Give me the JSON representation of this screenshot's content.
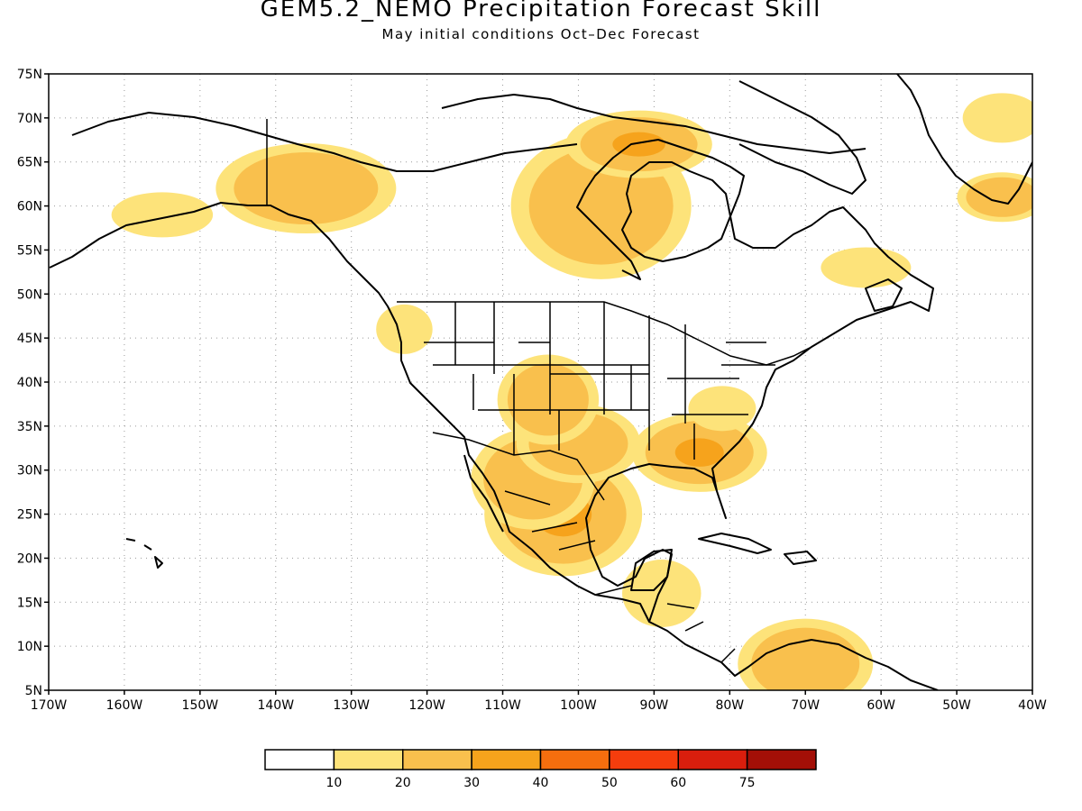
{
  "title": "GEM5.2_NEMO Precipitation Forecast Skill",
  "subtitle": "May initial conditions  Oct–Dec Forecast",
  "map": {
    "lon_range": [
      -170,
      -40
    ],
    "lat_range": [
      5,
      75
    ],
    "lon_labels": [
      "170W",
      "160W",
      "150W",
      "140W",
      "130W",
      "120W",
      "110W",
      "100W",
      "90W",
      "80W",
      "70W",
      "60W",
      "50W",
      "40W"
    ],
    "lat_labels": [
      "5N",
      "10N",
      "15N",
      "20N",
      "25N",
      "30N",
      "35N",
      "40N",
      "45N",
      "50N",
      "55N",
      "60N",
      "65N",
      "70N",
      "75N"
    ],
    "grid": "dotted",
    "skill_regions": [
      {
        "name": "mexico-central",
        "lon": -102,
        "lat": 25,
        "level": 30
      },
      {
        "name": "mexico-west",
        "lon": -106,
        "lat": 29,
        "level": 20
      },
      {
        "name": "texas-west",
        "lon": -100,
        "lat": 33,
        "level": 20
      },
      {
        "name": "colorado-kansas",
        "lon": -104,
        "lat": 38,
        "level": 20
      },
      {
        "name": "southeast-us",
        "lon": -84,
        "lat": 32,
        "level": 30
      },
      {
        "name": "appalachians",
        "lon": -81,
        "lat": 37,
        "level": 10
      },
      {
        "name": "pacific-northwest",
        "lon": -123,
        "lat": 46,
        "level": 10
      },
      {
        "name": "hudson-bay-west",
        "lon": -97,
        "lat": 60,
        "level": 20
      },
      {
        "name": "nunavut-north",
        "lon": -92,
        "lat": 67,
        "level": 30
      },
      {
        "name": "yukon",
        "lon": -136,
        "lat": 62,
        "level": 20
      },
      {
        "name": "alaska-south",
        "lon": -155,
        "lat": 59,
        "level": 10
      },
      {
        "name": "labrador",
        "lon": -62,
        "lat": 53,
        "level": 10
      },
      {
        "name": "greenland-south",
        "lon": -44,
        "lat": 61,
        "level": 20
      },
      {
        "name": "greenland-east",
        "lon": -44,
        "lat": 70,
        "level": 10
      },
      {
        "name": "venezuela",
        "lon": -70,
        "lat": 8,
        "level": 20
      },
      {
        "name": "central-america",
        "lon": -89,
        "lat": 16,
        "level": 10
      }
    ]
  },
  "colorbar": {
    "labels": [
      "10",
      "20",
      "30",
      "40",
      "50",
      "60",
      "75"
    ],
    "colors": [
      "#ffffff",
      "#fde37a",
      "#f9c04d",
      "#f6a31c",
      "#f56e0e",
      "#f53d0d",
      "#d91e0d",
      "#a30f07"
    ]
  }
}
